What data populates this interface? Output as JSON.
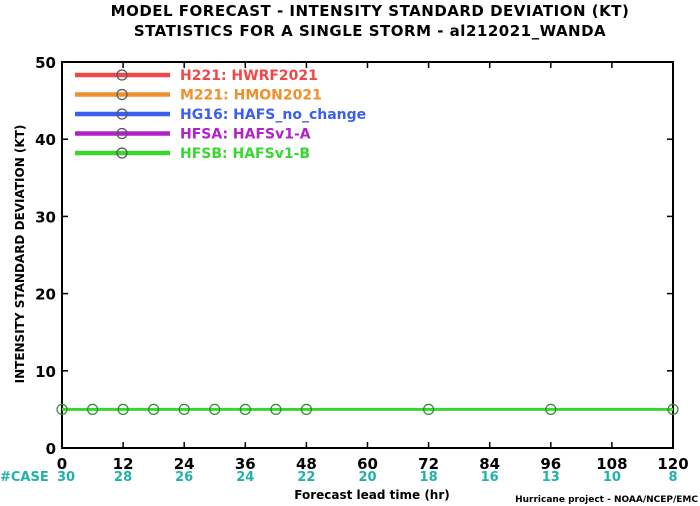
{
  "title_line1": "MODEL FORECAST - INTENSITY STANDARD DEVIATION (KT)",
  "title_line2": "STATISTICS FOR A SINGLE STORM - al212021_WANDA",
  "credit": "Hurricane project - NOAA/NCEP/EMC",
  "case_label": "#CASE",
  "chart_data": {
    "type": "line",
    "xlabel": "Forecast lead time (hr)",
    "ylabel": "INTENSITY STANDARD DEVIATION (KT)",
    "xlim": [
      0,
      120
    ],
    "ylim": [
      0,
      50
    ],
    "x_ticks": [
      0,
      12,
      24,
      36,
      48,
      60,
      72,
      84,
      96,
      108,
      120
    ],
    "x_tick_labels": [
      "0",
      "12",
      "24",
      "36",
      "48",
      "60",
      "72",
      "84",
      "96",
      "108",
      "120"
    ],
    "y_ticks": [
      0,
      10,
      20,
      30,
      40,
      50
    ],
    "y_tick_labels": [
      "0",
      "10",
      "20",
      "30",
      "40",
      "50"
    ],
    "grid": false,
    "legend_position": "top-left",
    "series": [
      {
        "name": "H221: HWRF2021",
        "color": "#f04848",
        "x": [],
        "y": []
      },
      {
        "name": "M221: HMON2021",
        "color": "#f0902c",
        "x": [],
        "y": []
      },
      {
        "name": "HG16: HAFS_no_change",
        "color": "#3a5ef0",
        "x": [],
        "y": []
      },
      {
        "name": "HFSA: HAFSv1-A",
        "color": "#b022c8",
        "x": [],
        "y": []
      },
      {
        "name": "HFSB: HAFSv1-B",
        "color": "#3ad630",
        "x": [
          0,
          6,
          12,
          18,
          24,
          30,
          36,
          42,
          48,
          72,
          96,
          120
        ],
        "y": [
          5,
          5,
          5,
          5,
          5,
          5,
          5,
          5,
          5,
          5,
          5,
          5
        ]
      }
    ],
    "cases": [
      {
        "x": 0,
        "label": "30"
      },
      {
        "x": 12,
        "label": "28"
      },
      {
        "x": 24,
        "label": "26"
      },
      {
        "x": 36,
        "label": "24"
      },
      {
        "x": 48,
        "label": "22"
      },
      {
        "x": 60,
        "label": "20"
      },
      {
        "x": 72,
        "label": "18"
      },
      {
        "x": 84,
        "label": "16"
      },
      {
        "x": 96,
        "label": "13"
      },
      {
        "x": 108,
        "label": "10"
      },
      {
        "x": 120,
        "label": "8"
      }
    ]
  }
}
